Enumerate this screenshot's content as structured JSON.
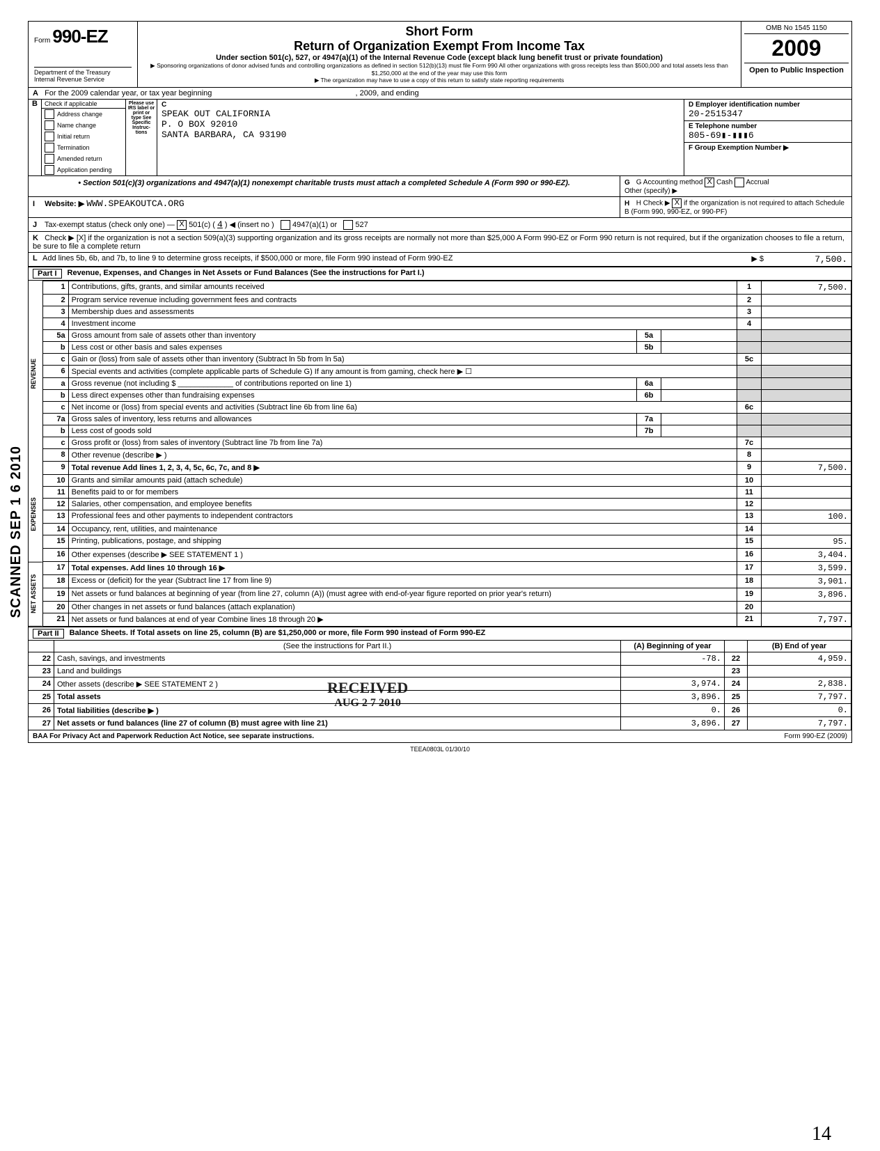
{
  "header": {
    "form_prefix": "Form",
    "form_number": "990-EZ",
    "short_form": "Short Form",
    "main_title": "Return of Organization Exempt From Income Tax",
    "sub_title": "Under section 501(c), 527, or 4947(a)(1) of the Internal Revenue Code (except black lung benefit trust or private foundation)",
    "sponsor_note": "▶ Sponsoring organizations of donor advised funds and controlling organizations as defined in section 512(b)(13) must file Form 990  All other organizations with gross receipts less than $500,000 and total assets less than $1,250,000 at the end of the year may use this form",
    "copy_note": "▶ The organization may have to use a copy of this return to satisfy state reporting requirements",
    "omb": "OMB No  1545 1150",
    "year": "2009",
    "open_public": "Open to Public Inspection",
    "dept": "Department of the Treasury",
    "irs": "Internal Revenue Service"
  },
  "section_a": {
    "line_a": "For the 2009 calendar year, or tax year beginning",
    "year_mid": ", 2009, and ending",
    "line_b": "Check if applicable",
    "checks": [
      "Address change",
      "Name change",
      "Initial return",
      "Termination",
      "Amended return",
      "Application pending"
    ],
    "irs_label": "Please use IRS label or print or type See Specific Instruc-tions",
    "c_label": "C",
    "org_name": "SPEAK OUT CALIFORNIA",
    "org_addr": "P. O BOX 92010",
    "org_city": "SANTA BARBARA, CA 93190",
    "d_label": "D  Employer identification number",
    "ein": "20-2515347",
    "e_label": "E  Telephone number",
    "phone": "805-69▮-▮▮▮6",
    "f_label": "F  Group Exemption Number ▶",
    "sec_note": "• Section 501(c)(3) organizations and 4947(a)(1) nonexempt charitable trusts must attach a completed Schedule A (Form 990 or 990-EZ).",
    "g_label": "G  Accounting method",
    "g_cash": "Cash",
    "g_accrual": "Accrual",
    "g_other": "Other (specify) ▶",
    "h_label": "H  Check ▶",
    "h_text": "if the organization is not required to attach Schedule B (Form 990, 990-EZ, or 990-PF)",
    "website_label": "Website: ▶",
    "website": "WWW.SPEAKOUTCA.ORG",
    "j_label": "Tax-exempt status (check only one) —",
    "j_501c": "501(c) (",
    "j_insert": "4",
    "j_insert_after": ")  ◀ (insert no )",
    "j_4947": "4947(a)(1) or",
    "j_527": "527",
    "k_text": "Check ▶ [X] if the organization is not a section 509(a)(3) supporting organization and its gross receipts are normally not more than $25,000  A Form 990-EZ or Form 990 return is not required, but if the organization chooses to file a return, be sure to file a complete return",
    "l_text": "Add lines 5b, 6b, and 7b, to line 9 to determine gross receipts, if $500,000 or more, file Form 990 instead of Form 990-EZ",
    "l_amount": "7,500."
  },
  "part1": {
    "title": "Part I",
    "heading": "Revenue, Expenses, and Changes in Net Assets or Fund Balances (See the instructions for Part I.)",
    "rows": [
      {
        "n": "1",
        "d": "Contributions, gifts, grants, and similar amounts received",
        "v": "7,500."
      },
      {
        "n": "2",
        "d": "Program service revenue including government fees and contracts",
        "v": ""
      },
      {
        "n": "3",
        "d": "Membership dues and assessments",
        "v": ""
      },
      {
        "n": "4",
        "d": "Investment income",
        "v": ""
      },
      {
        "n": "5a",
        "d": "Gross amount from sale of assets other than inventory",
        "mid": "5a",
        "v": null
      },
      {
        "n": "b",
        "d": "Less  cost or other basis and sales expenses",
        "mid": "5b",
        "v": null
      },
      {
        "n": "c",
        "d": "Gain or (loss) from sale of assets other than inventory (Subtract ln 5b from ln 5a)",
        "rn": "5c",
        "v": ""
      },
      {
        "n": "6",
        "d": "Special events and activities (complete applicable parts of Schedule G)  If any amount is from gaming, check here     ▶ ☐",
        "v": null
      },
      {
        "n": "a",
        "d": "Gross revenue (not including $ _____________ of contributions reported on line 1)",
        "mid": "6a",
        "v": null
      },
      {
        "n": "b",
        "d": "Less  direct expenses other than fundraising expenses",
        "mid": "6b",
        "v": null
      },
      {
        "n": "c",
        "d": "Net income or (loss) from special events and activities (Subtract line 6b from line 6a)",
        "rn": "6c",
        "v": ""
      },
      {
        "n": "7a",
        "d": "Gross sales of inventory, less returns and allowances",
        "mid": "7a",
        "v": null
      },
      {
        "n": "b",
        "d": "Less  cost of goods sold",
        "mid": "7b",
        "v": null
      },
      {
        "n": "c",
        "d": "Gross profit or (loss) from sales of inventory (Subtract line 7b from line 7a)",
        "rn": "7c",
        "v": ""
      },
      {
        "n": "8",
        "d": "Other revenue (describe ▶                                                                                             )",
        "rn": "8",
        "v": ""
      },
      {
        "n": "9",
        "d": "Total revenue  Add lines 1, 2, 3, 4, 5c, 6c, 7c, and 8                                                           ▶",
        "rn": "9",
        "v": "7,500.",
        "bold": true
      },
      {
        "n": "10",
        "d": "Grants and similar amounts paid (attach schedule)",
        "rn": "10",
        "v": ""
      },
      {
        "n": "11",
        "d": "Benefits paid to or for members",
        "rn": "11",
        "v": ""
      },
      {
        "n": "12",
        "d": "Salaries, other compensation, and employee benefits",
        "rn": "12",
        "v": ""
      },
      {
        "n": "13",
        "d": "Professional fees and other payments to independent contractors",
        "rn": "13",
        "v": "100."
      },
      {
        "n": "14",
        "d": "Occupancy, rent, utilities, and maintenance",
        "rn": "14",
        "v": ""
      },
      {
        "n": "15",
        "d": "Printing, publications, postage, and shipping",
        "rn": "15",
        "v": "95."
      },
      {
        "n": "16",
        "d": "Other expenses (describe ▶  SEE STATEMENT 1                                          )",
        "rn": "16",
        "v": "3,404."
      },
      {
        "n": "17",
        "d": "Total expenses.  Add lines 10 through 16                                                                       ▶",
        "rn": "17",
        "v": "3,599.",
        "bold": true
      },
      {
        "n": "18",
        "d": "Excess or (deficit) for the year (Subtract line 17 from line 9)",
        "rn": "18",
        "v": "3,901."
      },
      {
        "n": "19",
        "d": "Net assets or fund balances at beginning of year (from line 27, column (A)) (must agree with end-of-year figure reported on prior year's return)",
        "rn": "19",
        "v": "3,896."
      },
      {
        "n": "20",
        "d": "Other changes in net assets or fund balances (attach explanation)",
        "rn": "20",
        "v": ""
      },
      {
        "n": "21",
        "d": "Net assets or fund balances at end of year  Combine lines 18 through 20                                  ▶",
        "rn": "21",
        "v": "7,797."
      }
    ],
    "side_labels": {
      "rev": "REVENUE",
      "exp": "EXPENSES",
      "net": "NET ASSETS"
    }
  },
  "part2": {
    "title": "Part II",
    "heading": "Balance Sheets. If Total assets on line 25, column (B) are $1,250,000 or more, file Form 990 instead of Form 990-EZ",
    "instr": "(See the instructions for Part II.)",
    "col_a": "(A) Beginning of year",
    "col_b": "(B) End of year",
    "rows": [
      {
        "n": "22",
        "d": "Cash, savings, and investments",
        "a": "-78.",
        "b": "4,959."
      },
      {
        "n": "23",
        "d": "Land and buildings",
        "a": "",
        "b": ""
      },
      {
        "n": "24",
        "d": "Other assets (describe ▶   SEE STATEMENT 2                       )",
        "a": "3,974.",
        "b": "2,838."
      },
      {
        "n": "25",
        "d": "Total assets",
        "a": "3,896.",
        "b": "7,797.",
        "bold": true
      },
      {
        "n": "26",
        "d": "Total liabilities (describe ▶                                                    )",
        "a": "0.",
        "b": "0.",
        "bold": true
      },
      {
        "n": "27",
        "d": "Net assets or fund balances (line 27 of column (B) must agree with line 21)",
        "a": "3,896.",
        "b": "7,797.",
        "bold": true
      }
    ]
  },
  "footer": {
    "baa": "BAA  For Privacy Act and Paperwork Reduction Act Notice, see separate instructions.",
    "code": "TEEA0803L  01/30/10",
    "formref": "Form 990-EZ (2009)"
  },
  "stamps": {
    "scanned": "SCANNED SEP 1 6 2010",
    "received": "RECEIVED",
    "received_date": "AUG 2 7 2010",
    "hand": "14"
  }
}
